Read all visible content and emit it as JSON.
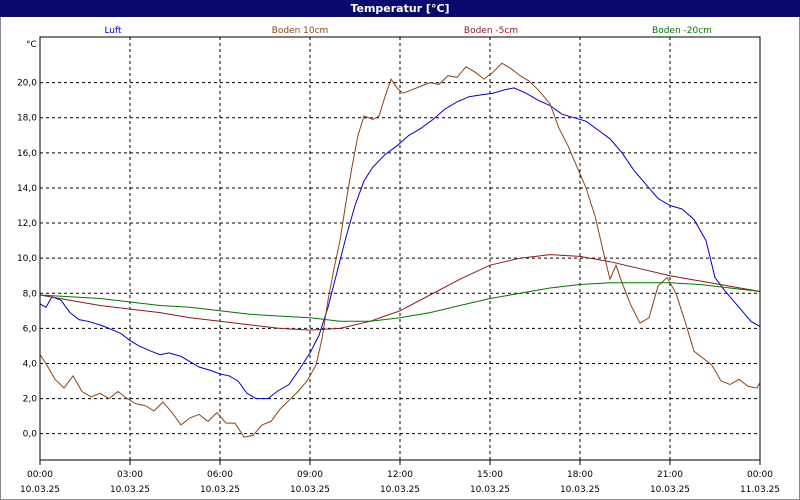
{
  "window": {
    "title": "Temperatur [°C]"
  },
  "chart_data": {
    "type": "line",
    "title": "Temperatur [°C]",
    "ylabel": "°C",
    "ylim": [
      -1.5,
      22.6
    ],
    "y_ticks": [
      0,
      2,
      4,
      6,
      8,
      10,
      12,
      14,
      16,
      18,
      20
    ],
    "y_tick_labels": [
      "0,0",
      "2,0",
      "4,0",
      "6,0",
      "8,0",
      "10,0",
      "12,0",
      "14,0",
      "16,0",
      "18,0",
      "20,0"
    ],
    "x_ticks": [
      {
        "time": "00:00",
        "date": "10.03.25"
      },
      {
        "time": "03:00",
        "date": "10.03.25"
      },
      {
        "time": "06:00",
        "date": "10.03.25"
      },
      {
        "time": "09:00",
        "date": "10.03.25"
      },
      {
        "time": "12:00",
        "date": "10.03.25"
      },
      {
        "time": "15:00",
        "date": "10.03.25"
      },
      {
        "time": "18:00",
        "date": "10.03.25"
      },
      {
        "time": "21:00",
        "date": "10.03.25"
      },
      {
        "time": "00:00",
        "date": "11.03.25"
      }
    ],
    "grid": true,
    "legend_position": "top",
    "series": [
      {
        "name": "Luft",
        "color": "#0000cc",
        "points": [
          [
            0,
            7.4
          ],
          [
            0.2,
            7.2
          ],
          [
            0.4,
            7.8
          ],
          [
            0.7,
            7.6
          ],
          [
            1.0,
            6.9
          ],
          [
            1.3,
            6.5
          ],
          [
            1.6,
            6.4
          ],
          [
            2.0,
            6.2
          ],
          [
            2.3,
            6.0
          ],
          [
            2.7,
            5.7
          ],
          [
            3.0,
            5.3
          ],
          [
            3.3,
            5.0
          ],
          [
            3.7,
            4.7
          ],
          [
            4.0,
            4.5
          ],
          [
            4.3,
            4.6
          ],
          [
            4.7,
            4.4
          ],
          [
            5.0,
            4.1
          ],
          [
            5.3,
            3.8
          ],
          [
            5.7,
            3.6
          ],
          [
            6.0,
            3.4
          ],
          [
            6.3,
            3.3
          ],
          [
            6.6,
            3.0
          ],
          [
            6.9,
            2.3
          ],
          [
            7.2,
            2.0
          ],
          [
            7.6,
            2.0
          ],
          [
            7.9,
            2.4
          ],
          [
            8.3,
            2.8
          ],
          [
            8.7,
            3.8
          ],
          [
            9.0,
            4.6
          ],
          [
            9.3,
            5.6
          ],
          [
            9.6,
            7.2
          ],
          [
            9.9,
            9.2
          ],
          [
            10.2,
            11.2
          ],
          [
            10.5,
            13.0
          ],
          [
            10.8,
            14.4
          ],
          [
            11.1,
            15.2
          ],
          [
            11.5,
            15.9
          ],
          [
            11.9,
            16.4
          ],
          [
            12.3,
            17.0
          ],
          [
            12.7,
            17.4
          ],
          [
            13.1,
            17.9
          ],
          [
            13.5,
            18.5
          ],
          [
            13.9,
            18.9
          ],
          [
            14.3,
            19.2
          ],
          [
            14.7,
            19.3
          ],
          [
            15.1,
            19.4
          ],
          [
            15.5,
            19.6
          ],
          [
            15.8,
            19.7
          ],
          [
            16.2,
            19.4
          ],
          [
            16.6,
            19.0
          ],
          [
            17.0,
            18.7
          ],
          [
            17.4,
            18.2
          ],
          [
            17.8,
            18.0
          ],
          [
            18.2,
            17.8
          ],
          [
            18.6,
            17.3
          ],
          [
            19.0,
            16.8
          ],
          [
            19.4,
            16.0
          ],
          [
            19.8,
            15.0
          ],
          [
            20.2,
            14.2
          ],
          [
            20.6,
            13.4
          ],
          [
            21.0,
            13.0
          ],
          [
            21.4,
            12.8
          ],
          [
            21.8,
            12.2
          ],
          [
            22.2,
            11.0
          ],
          [
            22.5,
            8.9
          ],
          [
            22.8,
            8.2
          ],
          [
            23.1,
            7.6
          ],
          [
            23.4,
            7.0
          ],
          [
            23.7,
            6.4
          ],
          [
            24.0,
            6.1
          ]
        ]
      },
      {
        "name": "Boden 10cm",
        "color": "#8b4513",
        "points": [
          [
            0,
            4.5
          ],
          [
            0.2,
            4.0
          ],
          [
            0.5,
            3.1
          ],
          [
            0.8,
            2.6
          ],
          [
            1.1,
            3.3
          ],
          [
            1.4,
            2.4
          ],
          [
            1.7,
            2.1
          ],
          [
            2.0,
            2.3
          ],
          [
            2.3,
            2.0
          ],
          [
            2.6,
            2.4
          ],
          [
            2.9,
            2.0
          ],
          [
            3.2,
            1.7
          ],
          [
            3.5,
            1.6
          ],
          [
            3.8,
            1.3
          ],
          [
            4.1,
            1.8
          ],
          [
            4.4,
            1.2
          ],
          [
            4.7,
            0.5
          ],
          [
            5.0,
            0.9
          ],
          [
            5.3,
            1.1
          ],
          [
            5.6,
            0.7
          ],
          [
            5.9,
            1.2
          ],
          [
            6.2,
            0.6
          ],
          [
            6.5,
            0.6
          ],
          [
            6.8,
            -0.2
          ],
          [
            7.1,
            -0.1
          ],
          [
            7.4,
            0.5
          ],
          [
            7.7,
            0.7
          ],
          [
            8.0,
            1.4
          ],
          [
            8.3,
            1.9
          ],
          [
            8.6,
            2.4
          ],
          [
            8.9,
            3.0
          ],
          [
            9.2,
            3.9
          ],
          [
            9.4,
            5.4
          ],
          [
            9.6,
            7.6
          ],
          [
            9.8,
            9.4
          ],
          [
            10.0,
            11.0
          ],
          [
            10.2,
            13.2
          ],
          [
            10.4,
            15.2
          ],
          [
            10.6,
            17.0
          ],
          [
            10.8,
            18.1
          ],
          [
            11.1,
            17.9
          ],
          [
            11.3,
            18.1
          ],
          [
            11.5,
            19.2
          ],
          [
            11.7,
            20.2
          ],
          [
            11.9,
            19.7
          ],
          [
            12.1,
            19.4
          ],
          [
            12.4,
            19.6
          ],
          [
            12.7,
            19.8
          ],
          [
            13.0,
            20.0
          ],
          [
            13.3,
            19.9
          ],
          [
            13.6,
            20.4
          ],
          [
            13.9,
            20.3
          ],
          [
            14.2,
            20.9
          ],
          [
            14.5,
            20.6
          ],
          [
            14.8,
            20.2
          ],
          [
            15.1,
            20.6
          ],
          [
            15.4,
            21.1
          ],
          [
            15.7,
            20.8
          ],
          [
            16.0,
            20.4
          ],
          [
            16.3,
            20.1
          ],
          [
            16.6,
            19.6
          ],
          [
            17.0,
            18.8
          ],
          [
            17.3,
            17.4
          ],
          [
            17.6,
            16.4
          ],
          [
            17.9,
            15.2
          ],
          [
            18.2,
            14.0
          ],
          [
            18.5,
            12.4
          ],
          [
            18.8,
            10.2
          ],
          [
            19.0,
            8.8
          ],
          [
            19.2,
            9.6
          ],
          [
            19.4,
            8.6
          ],
          [
            19.7,
            7.3
          ],
          [
            20.0,
            6.3
          ],
          [
            20.3,
            6.6
          ],
          [
            20.6,
            8.4
          ],
          [
            20.9,
            8.9
          ],
          [
            21.2,
            8.0
          ],
          [
            21.5,
            6.4
          ],
          [
            21.8,
            4.7
          ],
          [
            22.1,
            4.3
          ],
          [
            22.4,
            3.9
          ],
          [
            22.7,
            3.0
          ],
          [
            23.0,
            2.8
          ],
          [
            23.3,
            3.1
          ],
          [
            23.6,
            2.7
          ],
          [
            23.9,
            2.6
          ],
          [
            24.0,
            2.9
          ]
        ]
      },
      {
        "name": "Boden -5cm",
        "color": "#8b1a1a",
        "points": [
          [
            0,
            7.9
          ],
          [
            1,
            7.6
          ],
          [
            2,
            7.3
          ],
          [
            3,
            7.1
          ],
          [
            4,
            6.9
          ],
          [
            5,
            6.6
          ],
          [
            6,
            6.4
          ],
          [
            7,
            6.2
          ],
          [
            8,
            6.0
          ],
          [
            9,
            5.9
          ],
          [
            10,
            6.0
          ],
          [
            11,
            6.4
          ],
          [
            12,
            7.0
          ],
          [
            13,
            7.9
          ],
          [
            14,
            8.8
          ],
          [
            15,
            9.6
          ],
          [
            16,
            10.0
          ],
          [
            17,
            10.2
          ],
          [
            18,
            10.1
          ],
          [
            19,
            9.8
          ],
          [
            20,
            9.4
          ],
          [
            21,
            9.0
          ],
          [
            22,
            8.7
          ],
          [
            23,
            8.4
          ],
          [
            24,
            8.1
          ]
        ]
      },
      {
        "name": "Boden -20cm",
        "color": "#007700",
        "points": [
          [
            0,
            7.9
          ],
          [
            1,
            7.8
          ],
          [
            2,
            7.7
          ],
          [
            3,
            7.5
          ],
          [
            4,
            7.3
          ],
          [
            5,
            7.2
          ],
          [
            6,
            7.0
          ],
          [
            7,
            6.8
          ],
          [
            8,
            6.7
          ],
          [
            9,
            6.6
          ],
          [
            10,
            6.4
          ],
          [
            11,
            6.4
          ],
          [
            12,
            6.6
          ],
          [
            13,
            6.9
          ],
          [
            14,
            7.3
          ],
          [
            15,
            7.7
          ],
          [
            16,
            8.0
          ],
          [
            17,
            8.3
          ],
          [
            18,
            8.5
          ],
          [
            19,
            8.6
          ],
          [
            20,
            8.6
          ],
          [
            21,
            8.6
          ],
          [
            22,
            8.5
          ],
          [
            23,
            8.3
          ],
          [
            24,
            8.1
          ]
        ]
      }
    ]
  }
}
